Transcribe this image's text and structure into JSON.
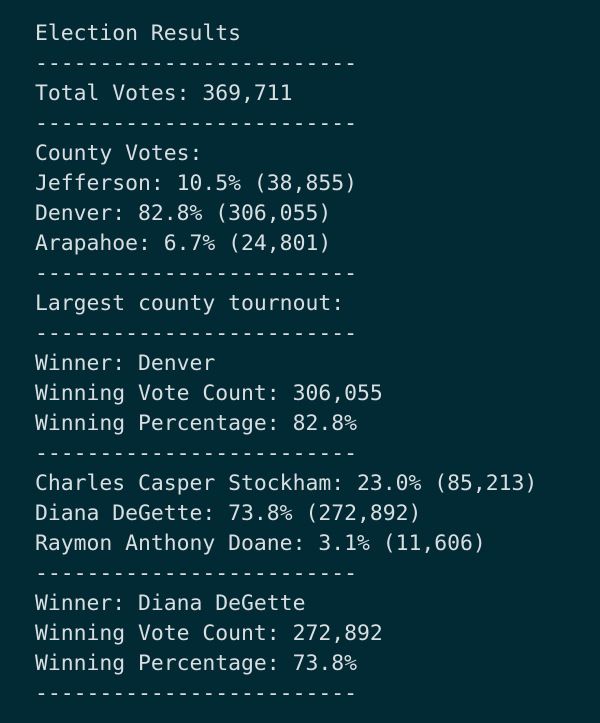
{
  "lines": [
    "Election Results",
    "-------------------------",
    "Total Votes: 369,711",
    "-------------------------",
    "County Votes:",
    "Jefferson: 10.5% (38,855)",
    "Denver: 82.8% (306,055)",
    "Arapahoe: 6.7% (24,801)",
    "-------------------------",
    "Largest county tournout:",
    "-------------------------",
    "Winner: Denver",
    "Winning Vote Count: 306,055",
    "Winning Percentage: 82.8%",
    "-------------------------",
    "Charles Casper Stockham: 23.0% (85,213)",
    "Diana DeGette: 73.8% (272,892)",
    "Raymon Anthony Doane: 3.1% (11,606)",
    "-------------------------",
    "Winner: Diana DeGette",
    "Winning Vote Count: 272,892",
    "Winning Percentage: 73.8%",
    "-------------------------"
  ]
}
